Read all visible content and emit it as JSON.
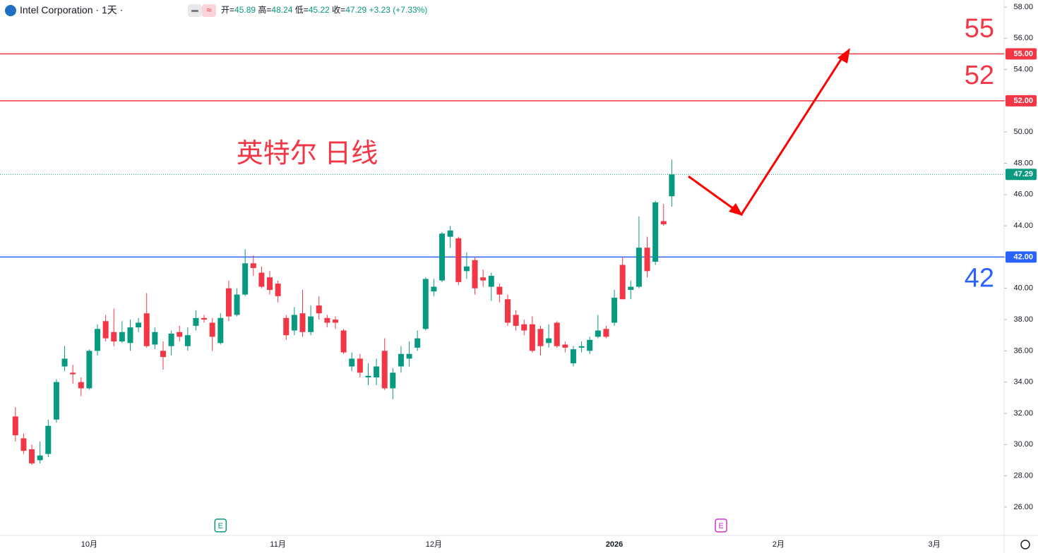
{
  "chart_data": {
    "type": "candlestick",
    "title": "Intel Corporation",
    "interval": "1天",
    "annotation": "英特尔 日线",
    "ohlc_labels": [
      "开=",
      "高=",
      "低=",
      "收="
    ],
    "change": {
      "value": 3.23,
      "label": "+3.23"
    },
    "change_pct": {
      "value": 7.33,
      "label": "(+7.33%)"
    },
    "up_color": "#089981",
    "down_color": "#f23645",
    "ylim": [
      24.19,
      58.45
    ],
    "yticks": [
      {
        "value": 26,
        "label": "26.00"
      },
      {
        "value": 28,
        "label": "28.00"
      },
      {
        "value": 30,
        "label": "30.00"
      },
      {
        "value": 32,
        "label": "32.00"
      },
      {
        "value": 34,
        "label": "34.00"
      },
      {
        "value": 36,
        "label": "36.00"
      },
      {
        "value": 38,
        "label": "38.00"
      },
      {
        "value": 40,
        "label": "40.00"
      },
      {
        "value": 42,
        "label": "42.00"
      },
      {
        "value": 44,
        "label": "44.00"
      },
      {
        "value": 46,
        "label": "46.00"
      },
      {
        "value": 48,
        "label": "48.00"
      },
      {
        "value": 50,
        "label": "50.00"
      },
      {
        "value": 52,
        "label": "52.00"
      },
      {
        "value": 54,
        "label": "54.00"
      },
      {
        "value": 56,
        "label": "56.00"
      },
      {
        "value": 58,
        "label": "58.00"
      }
    ],
    "levels": [
      {
        "value": 55,
        "label": "55.00",
        "color": "#f23645"
      },
      {
        "value": 52,
        "label": "52.00",
        "color": "#f23645"
      },
      {
        "value": 42,
        "label": "42.00",
        "color": "#2962ff"
      }
    ],
    "events": [
      {
        "index": 25,
        "label": "E",
        "color": "#089981"
      },
      {
        "index": 86,
        "label": "E",
        "color": "#cc33cc"
      }
    ],
    "categories": [
      null,
      null,
      null,
      null,
      null,
      null,
      null,
      null,
      null,
      "10月",
      null,
      null,
      null,
      null,
      null,
      null,
      null,
      null,
      null,
      null,
      null,
      null,
      null,
      null,
      null,
      null,
      null,
      null,
      null,
      null,
      null,
      null,
      "11月",
      null,
      null,
      null,
      null,
      null,
      null,
      null,
      null,
      null,
      null,
      null,
      null,
      null,
      null,
      null,
      null,
      null,
      null,
      "12月",
      null,
      null,
      null,
      null,
      null,
      null,
      null,
      null,
      null,
      null,
      null,
      null,
      null,
      null,
      null,
      null,
      null,
      null,
      null,
      null,
      null,
      "2026",
      null,
      null,
      null,
      null,
      null,
      null,
      null,
      null,
      null,
      null,
      null,
      null,
      null,
      null,
      null,
      null,
      null,
      null,
      null,
      "2月",
      null,
      null,
      null,
      null,
      null,
      null,
      null,
      null,
      null,
      null,
      null,
      null,
      null,
      null,
      null,
      null,
      null,
      null,
      "3月",
      null,
      null,
      null,
      null,
      null,
      null,
      null,
      null
    ],
    "ohlc": [
      [
        31.8,
        32.4,
        30.2,
        30.6
      ],
      [
        30.4,
        30.7,
        29.4,
        29.6
      ],
      [
        29.7,
        30.0,
        28.7,
        28.8
      ],
      [
        29.0,
        30.2,
        28.8,
        29.3
      ],
      [
        29.4,
        31.6,
        29.2,
        31.2
      ],
      [
        31.6,
        34.2,
        31.4,
        34.0
      ],
      [
        35.0,
        36.3,
        34.7,
        35.5
      ],
      [
        34.6,
        35.1,
        33.9,
        34.5
      ],
      [
        34.0,
        34.3,
        33.1,
        33.6
      ],
      [
        33.6,
        36.1,
        33.5,
        36.0
      ],
      [
        36.0,
        37.7,
        35.7,
        37.4
      ],
      [
        37.9,
        38.3,
        36.6,
        36.8
      ],
      [
        37.2,
        38.7,
        36.3,
        36.6
      ],
      [
        36.6,
        37.9,
        36.5,
        37.2
      ],
      [
        36.5,
        38.0,
        36.0,
        37.5
      ],
      [
        37.5,
        38.1,
        37.2,
        37.8
      ],
      [
        38.4,
        39.7,
        36.2,
        36.3
      ],
      [
        36.4,
        37.5,
        36.1,
        37.2
      ],
      [
        36.0,
        36.6,
        34.8,
        35.6
      ],
      [
        36.3,
        37.3,
        35.7,
        37.1
      ],
      [
        37.2,
        37.6,
        36.6,
        36.9
      ],
      [
        36.3,
        37.5,
        36.0,
        37.0
      ],
      [
        37.6,
        38.6,
        37.3,
        38.1
      ],
      [
        38.1,
        38.3,
        37.8,
        38.0
      ],
      [
        37.8,
        38.1,
        36.0,
        36.9
      ],
      [
        36.5,
        38.4,
        36.4,
        38.1
      ],
      [
        40.0,
        40.5,
        37.9,
        38.2
      ],
      [
        38.3,
        40.0,
        38.2,
        39.6
      ],
      [
        39.6,
        42.5,
        39.5,
        41.6
      ],
      [
        41.6,
        42.1,
        40.8,
        41.3
      ],
      [
        41.0,
        41.4,
        40.0,
        40.1
      ],
      [
        40.7,
        41.1,
        39.6,
        39.9
      ],
      [
        40.3,
        40.5,
        39.1,
        39.5
      ],
      [
        38.1,
        38.3,
        36.7,
        37.0
      ],
      [
        37.3,
        38.8,
        37.0,
        38.3
      ],
      [
        38.4,
        39.9,
        36.9,
        37.2
      ],
      [
        37.2,
        38.9,
        37.0,
        38.2
      ],
      [
        38.9,
        39.5,
        38.0,
        38.4
      ],
      [
        38.1,
        38.3,
        37.5,
        37.8
      ],
      [
        38.0,
        38.2,
        37.4,
        37.8
      ],
      [
        37.3,
        37.4,
        35.8,
        35.9
      ],
      [
        35.0,
        35.9,
        34.7,
        35.5
      ],
      [
        35.5,
        35.8,
        34.3,
        34.6
      ],
      [
        34.3,
        35.2,
        33.8,
        34.4
      ],
      [
        34.3,
        35.5,
        33.8,
        35.0
      ],
      [
        36.0,
        36.8,
        33.5,
        33.6
      ],
      [
        33.6,
        34.9,
        32.9,
        34.6
      ],
      [
        35.0,
        36.3,
        34.6,
        35.8
      ],
      [
        35.5,
        36.6,
        35.0,
        35.8
      ],
      [
        36.2,
        37.3,
        36.0,
        36.8
      ],
      [
        37.4,
        40.7,
        37.3,
        40.6
      ],
      [
        39.8,
        40.6,
        39.5,
        40.1
      ],
      [
        40.5,
        43.6,
        40.4,
        43.5
      ],
      [
        43.3,
        44.0,
        42.6,
        43.7
      ],
      [
        43.2,
        43.3,
        40.2,
        40.4
      ],
      [
        41.1,
        42.3,
        40.6,
        41.4
      ],
      [
        41.8,
        42.0,
        39.6,
        40.0
      ],
      [
        40.7,
        41.2,
        40.1,
        40.5
      ],
      [
        40.1,
        41.0,
        39.2,
        40.8
      ],
      [
        40.1,
        40.3,
        39.1,
        39.6
      ],
      [
        39.3,
        39.6,
        37.6,
        37.8
      ],
      [
        38.3,
        38.6,
        37.3,
        37.6
      ],
      [
        37.7,
        38.0,
        37.0,
        37.3
      ],
      [
        37.7,
        38.2,
        35.9,
        36.0
      ],
      [
        37.4,
        37.6,
        35.7,
        36.3
      ],
      [
        36.5,
        37.7,
        36.2,
        36.8
      ],
      [
        37.8,
        37.9,
        36.2,
        36.3
      ],
      [
        36.4,
        36.6,
        35.9,
        36.2
      ],
      [
        35.2,
        36.3,
        35.0,
        36.1
      ],
      [
        36.2,
        36.6,
        35.9,
        36.3
      ],
      [
        36.0,
        36.9,
        35.8,
        36.7
      ],
      [
        36.9,
        38.3,
        36.8,
        37.3
      ],
      [
        37.4,
        37.6,
        36.8,
        36.9
      ],
      [
        37.8,
        39.9,
        37.6,
        39.4
      ],
      [
        41.5,
        42.0,
        39.3,
        39.3
      ],
      [
        39.9,
        40.5,
        39.3,
        40.1
      ],
      [
        40.1,
        44.6,
        40.0,
        42.6
      ],
      [
        42.6,
        43.3,
        40.7,
        41.1
      ],
      [
        41.7,
        45.6,
        41.5,
        45.5
      ],
      [
        44.3,
        45.4,
        44.0,
        44.1
      ],
      [
        45.89,
        48.24,
        45.22,
        47.29
      ],
      null,
      null,
      null,
      null,
      null,
      null,
      null,
      null,
      null,
      null,
      null,
      null,
      null,
      null,
      null,
      null,
      null,
      null,
      null,
      null,
      null,
      null,
      null,
      null,
      null,
      null,
      null,
      null,
      null,
      null,
      null,
      null,
      null,
      null,
      null,
      null,
      null,
      null,
      null,
      null
    ]
  }
}
